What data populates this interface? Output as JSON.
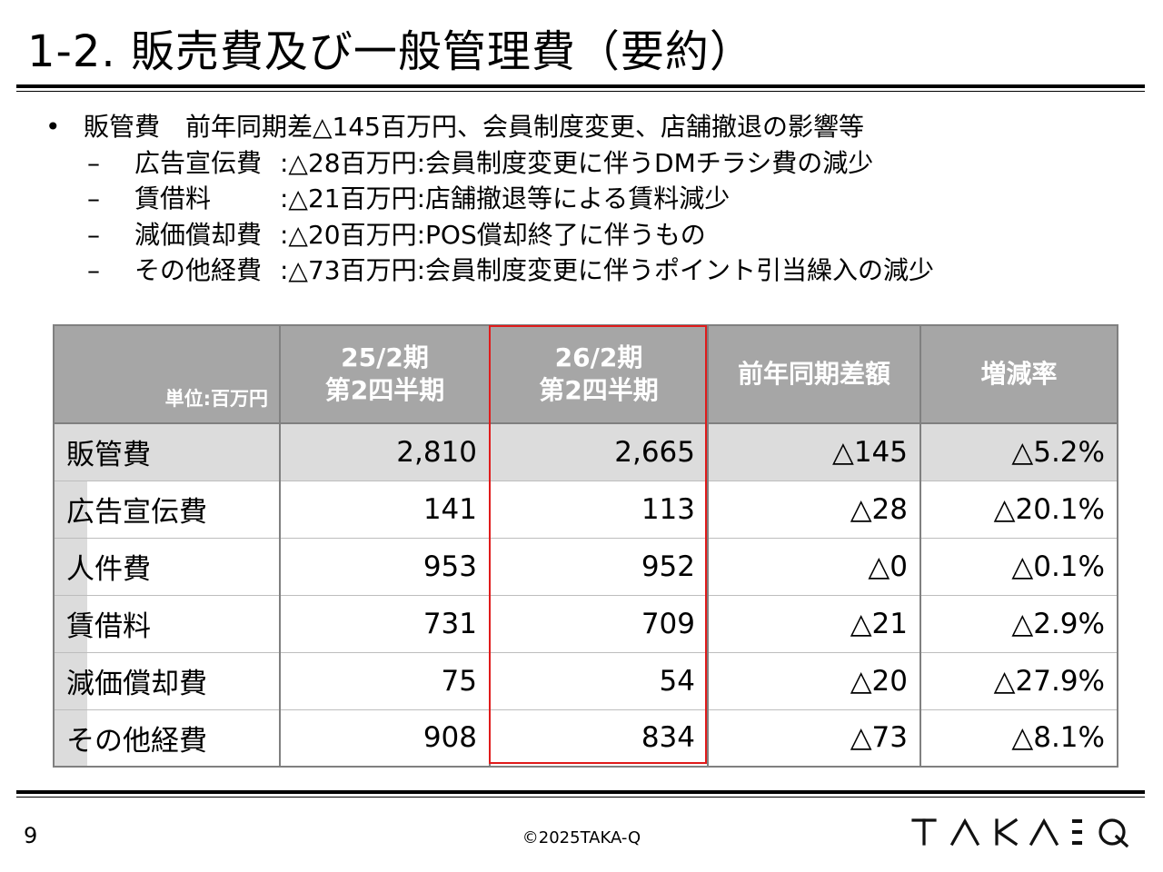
{
  "title": "1-2. 販売費及び一般管理費（要約）",
  "bullets": {
    "main": {
      "marker": "•",
      "text": "販管費　前年同期差△145百万円、会員制度変更、店舗撤退の影響等"
    },
    "subs": [
      {
        "marker": "–",
        "label": "広告宣伝費",
        "text": ":△28百万円:会員制度変更に伴うDMチラシ費の減少"
      },
      {
        "marker": "–",
        "label": "賃借料",
        "text": ":△21百万円:店舗撤退等による賃料減少"
      },
      {
        "marker": "–",
        "label": "減価償却費",
        "text": ":△20百万円:POS償却終了に伴うもの"
      },
      {
        "marker": "–",
        "label": "その他経費",
        "text": ":△73百万円:会員制度変更に伴うポイント引当繰入の減少"
      }
    ]
  },
  "table": {
    "unit": "単位:百万円",
    "headers": [
      {
        "line1": "25/2期",
        "line2": "第2四半期"
      },
      {
        "line1": "26/2期",
        "line2": "第2四半期"
      },
      {
        "line1": "前年同期差額",
        "line2": ""
      },
      {
        "line1": "増減率",
        "line2": ""
      }
    ],
    "rows": [
      {
        "label": "販管費",
        "prev": "2,810",
        "curr": "2,665",
        "diff": "△145",
        "rate": "△5.2%"
      },
      {
        "label": "広告宣伝費",
        "prev": "141",
        "curr": "113",
        "diff": "△28",
        "rate": "△20.1%"
      },
      {
        "label": "人件費",
        "prev": "953",
        "curr": "952",
        "diff": "△0",
        "rate": "△0.1%"
      },
      {
        "label": "賃借料",
        "prev": "731",
        "curr": "709",
        "diff": "△21",
        "rate": "△2.9%"
      },
      {
        "label": "減価償却費",
        "prev": "75",
        "curr": "54",
        "diff": "△20",
        "rate": "△27.9%"
      },
      {
        "label": "その他経費",
        "prev": "908",
        "curr": "834",
        "diff": "△73",
        "rate": "△8.1%"
      }
    ],
    "highlight_color": "#e01b1b",
    "header_bg": "#a6a6a6",
    "total_bg": "#dcdcdc"
  },
  "footer": {
    "page_number": "9",
    "copyright": "©2025TAKA-Q",
    "logo_text": "TAKA-Q"
  }
}
